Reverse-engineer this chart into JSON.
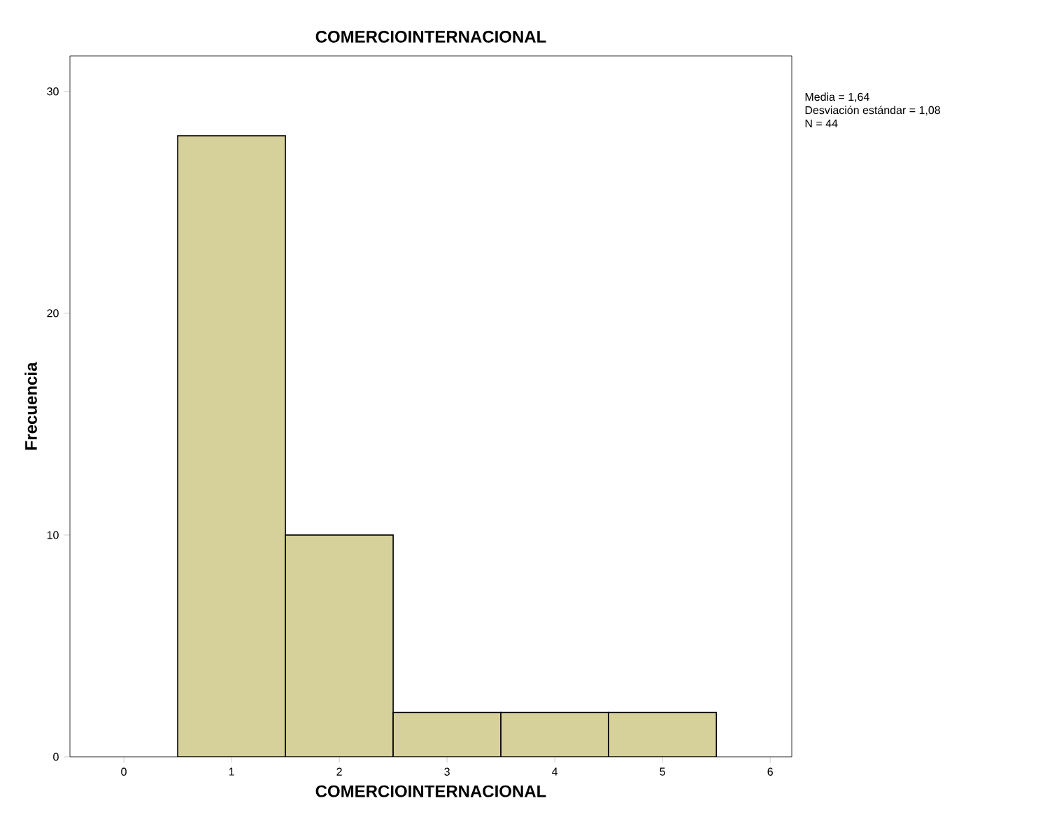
{
  "chart_data": {
    "type": "histogram",
    "title": "COMERCIOINTERNACIONAL",
    "xlabel": "COMERCIOINTERNACIONAL",
    "ylabel": "Frecuencia",
    "bins": [
      0.5,
      1.5,
      2.5,
      3.5,
      4.5,
      5.5
    ],
    "values": [
      28,
      10,
      2,
      2,
      2
    ],
    "color": "#d6d09a",
    "xlim": [
      -0.5,
      6.2
    ],
    "ylim": [
      0,
      31.6
    ],
    "xticks": [
      0,
      1,
      2,
      3,
      4,
      5,
      6
    ],
    "yticks": [
      0,
      10,
      20,
      30
    ],
    "grid": false,
    "annotations": [
      "Media = 1,64",
      "Desviación estándar = 1,08",
      "N = 44"
    ]
  }
}
